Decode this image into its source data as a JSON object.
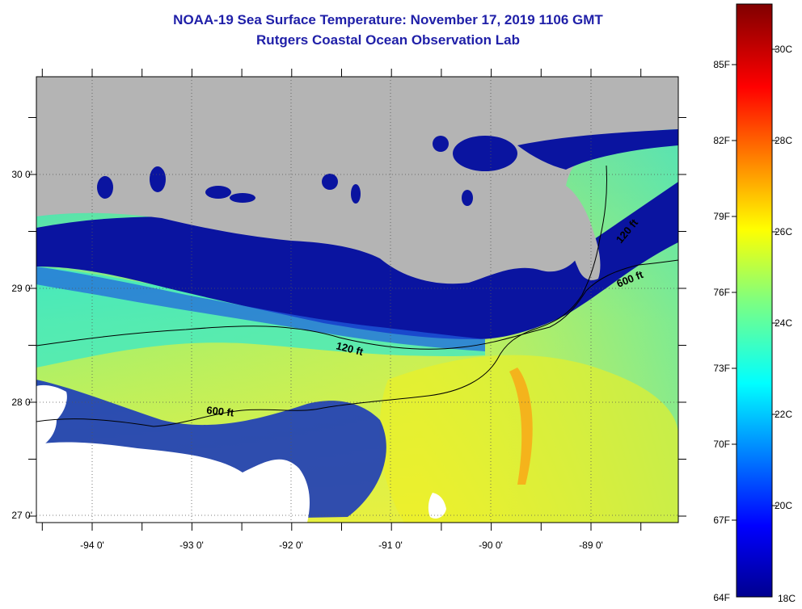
{
  "header": {
    "title_line1": "NOAA-19 Sea Surface Temperature:  November 17, 2019 1106 GMT",
    "title_line2": "Rutgers Coastal Ocean Observation Lab"
  },
  "map": {
    "longitude_labels": [
      "-94 0'",
      "-93 0'",
      "-92 0'",
      "-91 0'",
      "-90 0'",
      "-89 0'"
    ],
    "latitude_labels": [
      "30 0'",
      "29 0'",
      "28 0'",
      "27 0'"
    ],
    "contour_labels": {
      "shelf_120_west": "120 ft",
      "shelf_120_east": "120 ft",
      "slope_600_west": "600 ft",
      "slope_600_east": "600 ft"
    },
    "colors": {
      "land": "#b4b4b4",
      "nodata": "#ffffff",
      "cold_water": "#0a14a0",
      "warm_water": "#f0f020"
    }
  },
  "colorbar": {
    "fahrenheit_labels": [
      "85F",
      "82F",
      "79F",
      "76F",
      "73F",
      "70F",
      "67F",
      "64F"
    ],
    "celsius_labels": [
      "30C",
      "28C",
      "26C",
      "24C",
      "22C",
      "20C",
      "18C"
    ],
    "range_celsius": [
      18,
      31
    ],
    "colormap": "jet"
  }
}
